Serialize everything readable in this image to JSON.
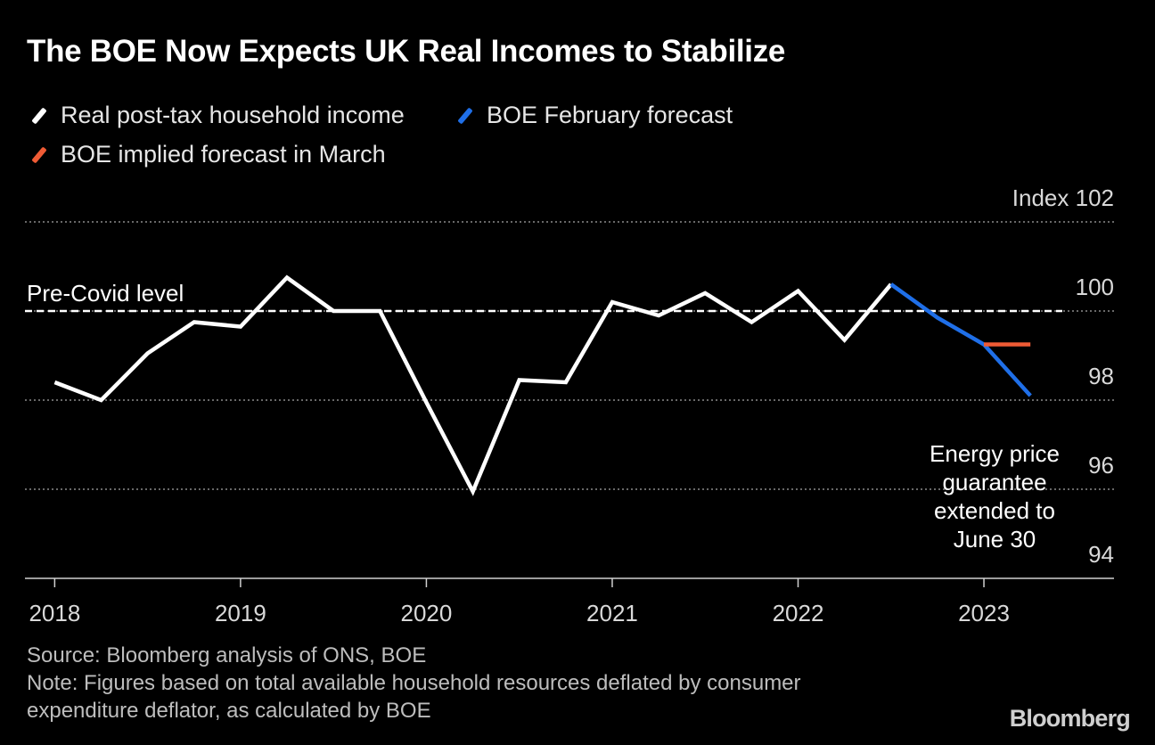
{
  "title": "The BOE Now Expects UK Real Incomes to Stabilize",
  "legend": [
    {
      "label": "Real post-tax household income",
      "color": "#ffffff"
    },
    {
      "label": "BOE February forecast",
      "color": "#1f6fe8"
    },
    {
      "label": "BOE implied forecast in March",
      "color": "#ef5b35"
    }
  ],
  "chart_data": {
    "type": "line",
    "ylabel": "Index",
    "ylim": [
      94,
      102
    ],
    "yticks": [
      94,
      96,
      98,
      100,
      102
    ],
    "ytick_labels": [
      "94",
      "96",
      "98",
      "100",
      "Index 102"
    ],
    "xlim": [
      2017.84,
      2023.7
    ],
    "xticks": [
      2018,
      2019,
      2020,
      2021,
      2022,
      2023
    ],
    "xtick_labels": [
      "2018",
      "2019",
      "2020",
      "2021",
      "2022",
      "2023"
    ],
    "grid": true,
    "series": [
      {
        "name": "Real post-tax household income",
        "color": "#ffffff",
        "x": [
          2018.0,
          2018.25,
          2018.5,
          2018.75,
          2019.0,
          2019.25,
          2019.5,
          2019.75,
          2020.0,
          2020.25,
          2020.5,
          2020.75,
          2021.0,
          2021.25,
          2021.5,
          2021.75,
          2022.0,
          2022.25,
          2022.5
        ],
        "y": [
          98.4,
          98.0,
          99.05,
          99.75,
          99.65,
          100.75,
          100.0,
          100.0,
          97.95,
          95.95,
          98.45,
          98.4,
          100.2,
          99.9,
          100.4,
          99.75,
          100.45,
          99.35,
          100.6
        ]
      },
      {
        "name": "BOE February forecast",
        "color": "#1f6fe8",
        "x": [
          2022.5,
          2022.75,
          2023.0,
          2023.25
        ],
        "y": [
          100.6,
          99.85,
          99.25,
          98.1
        ]
      },
      {
        "name": "BOE implied forecast in March",
        "color": "#ef5b35",
        "x": [
          2023.0,
          2023.25
        ],
        "y": [
          99.25,
          99.25
        ]
      }
    ],
    "reference_line": {
      "label": "Pre-Covid level",
      "y": 100
    },
    "annotation": {
      "lines": [
        "Energy price",
        "guarantee",
        "extended to",
        "June 30"
      ]
    }
  },
  "footer": {
    "source": "Source: Bloomberg analysis of ONS, BOE",
    "note_line1": "Note: Figures based on total available household resources deflated by consumer",
    "note_line2": "expenditure deflator, as calculated by BOE"
  },
  "brand": "Bloomberg"
}
